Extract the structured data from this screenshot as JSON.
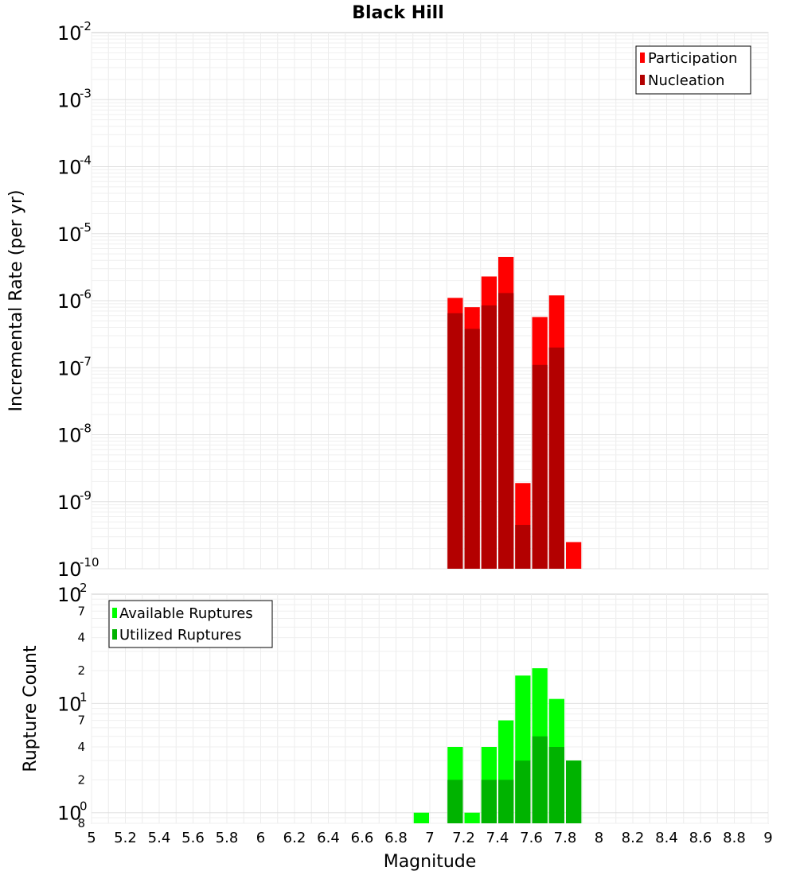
{
  "chart_data": [
    {
      "type": "bar",
      "title": "Black Hill",
      "ylabel": "Incremental Rate (per yr)",
      "yscale": "log",
      "ylim": [
        1e-10,
        0.01
      ],
      "xlim": [
        5,
        9
      ],
      "bin_width": 0.1,
      "y_tick_exponents": [
        "-2",
        "-3",
        "-4",
        "-5",
        "-6",
        "-7",
        "-8",
        "-9",
        "-10"
      ],
      "y_tick_base": "10",
      "legend": {
        "placement": "top-right",
        "entries": [
          {
            "label": "Participation",
            "color": "#ff0000"
          },
          {
            "label": "Nucleation",
            "color": "#b30000"
          }
        ]
      },
      "series": [
        {
          "name": "Participation",
          "color": "#ff0000",
          "x": [
            7.15,
            7.25,
            7.35,
            7.45,
            7.55,
            7.65,
            7.75,
            7.85
          ],
          "values": [
            1.1e-06,
            8e-07,
            2.3e-06,
            4.5e-06,
            1.9e-09,
            5.7e-07,
            1.2e-06,
            2.5e-10
          ]
        },
        {
          "name": "Nucleation",
          "color": "#b30000",
          "x": [
            7.15,
            7.25,
            7.35,
            7.45,
            7.55,
            7.65,
            7.75
          ],
          "values": [
            6.5e-07,
            3.8e-07,
            8.5e-07,
            1.3e-06,
            4.5e-10,
            1.1e-07,
            2e-07
          ]
        }
      ]
    },
    {
      "type": "bar",
      "xlabel": "Magnitude",
      "ylabel": "Rupture Count",
      "yscale": "log",
      "ylim": [
        0.8,
        100
      ],
      "xlim": [
        5,
        9
      ],
      "bin_width": 0.1,
      "x_ticks": [
        "5",
        "5.2",
        "5.4",
        "5.6",
        "5.8",
        "6",
        "6.2",
        "6.4",
        "6.6",
        "6.8",
        "7",
        "7.2",
        "7.4",
        "7.6",
        "7.8",
        "8",
        "8.2",
        "8.4",
        "8.6",
        "8.8",
        "9"
      ],
      "y_decade_ticks": [
        {
          "base": "10",
          "exp": "2"
        },
        {
          "base": "10",
          "exp": "1"
        },
        {
          "base": "10",
          "exp": "0"
        }
      ],
      "y_minor_labels": [
        "7",
        "4",
        "2",
        "7",
        "4",
        "2",
        "8"
      ],
      "legend": {
        "placement": "top-left",
        "entries": [
          {
            "label": "Available Ruptures",
            "color": "#00ff00"
          },
          {
            "label": "Utilized Ruptures",
            "color": "#00b300"
          }
        ]
      },
      "series": [
        {
          "name": "Available Ruptures",
          "color": "#00ff00",
          "x": [
            6.95,
            7.15,
            7.25,
            7.35,
            7.45,
            7.55,
            7.65,
            7.75,
            7.85
          ],
          "values": [
            1,
            4,
            1,
            4,
            7,
            18,
            21,
            11,
            3
          ]
        },
        {
          "name": "Utilized Ruptures",
          "color": "#00b300",
          "x": [
            7.15,
            7.35,
            7.45,
            7.55,
            7.65,
            7.75,
            7.85
          ],
          "values": [
            2,
            2,
            2,
            3,
            5,
            4,
            3
          ]
        }
      ]
    }
  ]
}
